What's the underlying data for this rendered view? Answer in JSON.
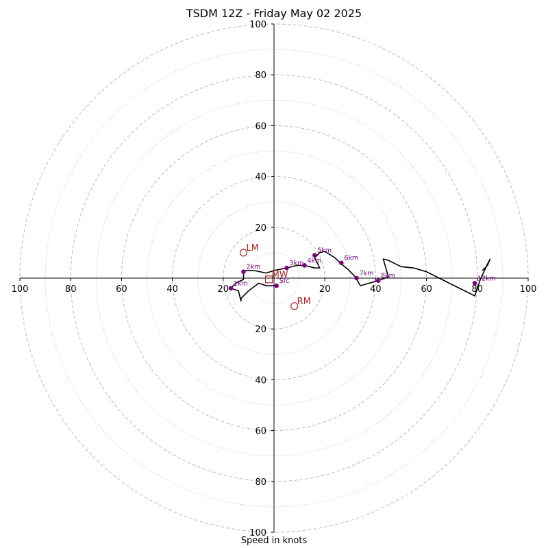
{
  "chart_data": {
    "type": "hodograph",
    "title": "TSDM 12Z - Friday May 02 2025",
    "xlabel": "Speed in knots",
    "range": [
      -100,
      100
    ],
    "ring_major": [
      20,
      40,
      60,
      80,
      100
    ],
    "ring_minor": [
      10,
      30,
      50,
      70,
      90
    ],
    "axis_tick_values": [
      20,
      40,
      60,
      80,
      100
    ],
    "axis_tick_labels": [
      "20",
      "40",
      "60",
      "80",
      "100"
    ],
    "colors": {
      "profile": "#000000",
      "height_marker": "#800080",
      "motion_marker": "#b22222",
      "grid": "#bbbbbb"
    },
    "wind_profile": [
      [
        0.5,
        -3
      ],
      [
        -3,
        -3
      ],
      [
        -6,
        -2
      ],
      [
        -10,
        -5
      ],
      [
        -13,
        -8
      ],
      [
        -13,
        -9
      ],
      [
        -14,
        -5
      ],
      [
        -17,
        -4
      ],
      [
        -15,
        -2
      ],
      [
        -12,
        -0.5
      ],
      [
        -12,
        2.5
      ],
      [
        -11,
        3
      ],
      [
        -8,
        3
      ],
      [
        -3,
        2
      ],
      [
        0,
        3
      ],
      [
        5,
        4
      ],
      [
        9,
        5
      ],
      [
        12,
        5
      ],
      [
        16,
        4
      ],
      [
        18,
        4
      ],
      [
        16,
        8
      ],
      [
        18,
        10
      ],
      [
        20,
        10.5
      ],
      [
        24,
        8
      ],
      [
        26,
        6
      ],
      [
        29,
        3.5
      ],
      [
        32,
        0.5
      ],
      [
        34,
        -3
      ],
      [
        41,
        -1
      ],
      [
        45,
        0.5
      ],
      [
        43,
        7.5
      ],
      [
        45,
        7
      ],
      [
        50,
        4.5
      ],
      [
        55,
        4
      ],
      [
        60,
        2.5
      ],
      [
        68,
        -1.5
      ],
      [
        78,
        -6.5
      ],
      [
        79,
        -7
      ],
      [
        81,
        -1
      ],
      [
        84,
        5.5
      ],
      [
        85,
        7.5
      ],
      [
        84,
        5
      ],
      [
        82,
        3
      ]
    ],
    "height_points": [
      {
        "label": "Sfc",
        "u": 1,
        "v": -3
      },
      {
        "label": "1km",
        "u": -17,
        "v": -4
      },
      {
        "label": "2km",
        "u": -12,
        "v": 2.5
      },
      {
        "label": "3km",
        "u": 5,
        "v": 4
      },
      {
        "label": "4km",
        "u": 12,
        "v": 5
      },
      {
        "label": "5km",
        "u": 16,
        "v": 9
      },
      {
        "label": "6km",
        "u": 26.5,
        "v": 6
      },
      {
        "label": "7km",
        "u": 32.5,
        "v": 0
      },
      {
        "label": "8km",
        "u": 41,
        "v": -1
      },
      {
        "label": "12km",
        "u": 79,
        "v": -2
      }
    ],
    "storm_motion": [
      {
        "label": "LM",
        "u": -12,
        "v": 10,
        "marker": "circle"
      },
      {
        "label": "RM",
        "u": 8,
        "v": -11,
        "marker": "circle"
      },
      {
        "label": "MW",
        "u": -2,
        "v": -0.5,
        "marker": "square"
      }
    ]
  }
}
